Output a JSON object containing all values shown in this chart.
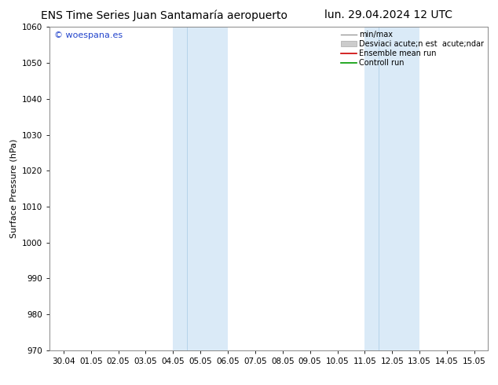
{
  "title_left": "ENS Time Series Juan Santamaría aeropuerto",
  "title_right": "lun. 29.04.2024 12 UTC",
  "ylabel": "Surface Pressure (hPa)",
  "ylim": [
    970,
    1060
  ],
  "yticks": [
    970,
    980,
    990,
    1000,
    1010,
    1020,
    1030,
    1040,
    1050,
    1060
  ],
  "xtick_labels": [
    "30.04",
    "01.05",
    "02.05",
    "03.05",
    "04.05",
    "05.05",
    "06.05",
    "07.05",
    "08.05",
    "09.05",
    "10.05",
    "11.05",
    "12.05",
    "13.05",
    "14.05",
    "15.05"
  ],
  "xtick_positions": [
    0,
    1,
    2,
    3,
    4,
    5,
    6,
    7,
    8,
    9,
    10,
    11,
    12,
    13,
    14,
    15
  ],
  "shade_bands": [
    {
      "xmin": 4.0,
      "xmax": 4.5,
      "color": "#daeaf7"
    },
    {
      "xmin": 4.5,
      "xmax": 6.0,
      "color": "#daeaf7"
    },
    {
      "xmin": 11.0,
      "xmax": 11.5,
      "color": "#daeaf7"
    },
    {
      "xmin": 11.5,
      "xmax": 13.0,
      "color": "#daeaf7"
    }
  ],
  "shade_bands_simple": [
    {
      "xmin": 4.0,
      "xmax": 6.0
    },
    {
      "xmin": 11.0,
      "xmax": 13.0
    }
  ],
  "shade_color": "#daeaf7",
  "shade_divider_color": "#b0cfe8",
  "shade_dividers": [
    4.5,
    11.5
  ],
  "watermark": "© woespana.es",
  "watermark_color": "#2244cc",
  "legend_labels": [
    "min/max",
    "Desviaci acute;n est  acute;ndar",
    "Ensemble mean run",
    "Controll run"
  ],
  "legend_colors": [
    "#999999",
    "#cccccc",
    "#cc0000",
    "#009900"
  ],
  "bg_color": "#ffffff",
  "title_fontsize": 10,
  "axis_label_fontsize": 8,
  "tick_fontsize": 7.5,
  "watermark_fontsize": 8,
  "legend_fontsize": 7
}
